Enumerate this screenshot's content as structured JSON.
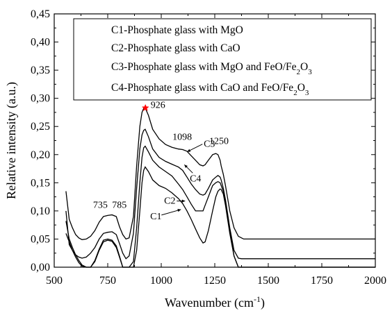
{
  "chart_data": {
    "type": "line",
    "title": "",
    "xlabel": "Wavenumber (cm",
    "xlabel_sup": "-1",
    "xlabel_end": ")",
    "ylabel": "Relative intensity (a.u.)",
    "xlim": [
      500,
      2000
    ],
    "ylim": [
      0,
      0.45
    ],
    "x_ticks": [
      500,
      750,
      1000,
      1250,
      1500,
      1750,
      2000
    ],
    "x_tick_labels": [
      "500",
      "750",
      "1000",
      "1250",
      "1500",
      "1750",
      "2000"
    ],
    "y_ticks": [
      0,
      0.05,
      0.1,
      0.15,
      0.2,
      0.25,
      0.3,
      0.35,
      0.4,
      0.45
    ],
    "y_tick_labels": [
      "0,00",
      "0,05",
      "0,10",
      "0,15",
      "0,20",
      "0,25",
      "0,30",
      "0,35",
      "0,40",
      "0,45"
    ],
    "grid": false,
    "legend_position": "top-right",
    "legend": [
      {
        "label": "C1-Phosphate glass with MgO"
      },
      {
        "label": "C2-Phosphate glass with CaO"
      },
      {
        "label": "C3-Phosphate glass with MgO and FeO/Fe",
        "sub": "2",
        "end": "O",
        "sub2": "3"
      },
      {
        "label": "C4-Phosphate glass with CaO and FeO/Fe",
        "sub": "2",
        "end": "O",
        "sub2": "3"
      }
    ],
    "series": [
      {
        "name": "C1",
        "x": [
          555,
          570,
          585,
          600,
          615,
          630,
          650,
          670,
          690,
          710,
          730,
          750,
          770,
          790,
          805,
          820,
          835,
          850,
          870,
          885,
          900,
          910,
          918,
          925,
          940,
          960,
          990,
          1020,
          1050,
          1080,
          1100,
          1120,
          1140,
          1160,
          1180,
          1195,
          1205,
          1220,
          1240,
          1255,
          1265,
          1275,
          1280,
          1290,
          1300,
          1320,
          1340,
          1360,
          1375,
          1385,
          1400,
          1500,
          1600,
          1700,
          1800,
          1900,
          2000
        ],
        "y": [
          0.06,
          0.045,
          0.03,
          0.018,
          0.008,
          0.002,
          0,
          0,
          0.01,
          0.03,
          0.045,
          0.048,
          0.046,
          0.035,
          0.018,
          0,
          0,
          0,
          0,
          0.03,
          0.1,
          0.15,
          0.172,
          0.178,
          0.17,
          0.155,
          0.145,
          0.14,
          0.132,
          0.122,
          0.113,
          0.1,
          0.085,
          0.068,
          0.052,
          0.043,
          0.045,
          0.065,
          0.1,
          0.125,
          0.135,
          0.139,
          0.138,
          0.13,
          0.11,
          0.06,
          0.02,
          0,
          0,
          0,
          0,
          0,
          0,
          0,
          0,
          0,
          0
        ]
      },
      {
        "name": "C2",
        "x": [
          555,
          570,
          585,
          600,
          615,
          630,
          650,
          670,
          690,
          710,
          730,
          750,
          770,
          790,
          805,
          820,
          835,
          850,
          870,
          885,
          900,
          910,
          918,
          925,
          940,
          960,
          990,
          1020,
          1050,
          1080,
          1100,
          1120,
          1140,
          1160,
          1180,
          1195,
          1205,
          1220,
          1240,
          1255,
          1265,
          1275,
          1280,
          1290,
          1300,
          1320,
          1340,
          1360,
          1375,
          1385,
          1400,
          1500,
          1600,
          1700,
          1800,
          1900,
          2000
        ],
        "y": [
          0.082,
          0.05,
          0.035,
          0.022,
          0.012,
          0.004,
          0,
          0,
          0.012,
          0.032,
          0.048,
          0.05,
          0.048,
          0.038,
          0.02,
          0,
          0,
          0,
          0.01,
          0.07,
          0.15,
          0.195,
          0.212,
          0.215,
          0.205,
          0.19,
          0.178,
          0.17,
          0.162,
          0.148,
          0.138,
          0.125,
          0.112,
          0.1,
          0.1,
          0.1,
          0.11,
          0.125,
          0.145,
          0.15,
          0.152,
          0.15,
          0.145,
          0.135,
          0.115,
          0.065,
          0.02,
          0,
          0,
          0,
          0,
          0,
          0,
          0,
          0,
          0,
          0
        ]
      },
      {
        "name": "C3",
        "x": [
          555,
          570,
          585,
          600,
          615,
          630,
          650,
          670,
          690,
          710,
          730,
          750,
          770,
          790,
          805,
          820,
          835,
          850,
          870,
          885,
          900,
          910,
          918,
          925,
          940,
          960,
          990,
          1020,
          1050,
          1080,
          1100,
          1120,
          1140,
          1160,
          1180,
          1195,
          1205,
          1220,
          1240,
          1255,
          1265,
          1275,
          1280,
          1290,
          1300,
          1320,
          1340,
          1360,
          1375,
          1385,
          1400,
          1500,
          1600,
          1700,
          1800,
          1900,
          2000
        ],
        "y": [
          0.135,
          0.085,
          0.07,
          0.058,
          0.052,
          0.049,
          0.05,
          0.055,
          0.065,
          0.08,
          0.09,
          0.092,
          0.093,
          0.09,
          0.072,
          0.058,
          0.05,
          0.052,
          0.09,
          0.18,
          0.25,
          0.275,
          0.282,
          0.283,
          0.27,
          0.245,
          0.228,
          0.218,
          0.213,
          0.21,
          0.209,
          0.206,
          0.198,
          0.19,
          0.182,
          0.18,
          0.182,
          0.19,
          0.2,
          0.202,
          0.2,
          0.19,
          0.18,
          0.165,
          0.145,
          0.1,
          0.07,
          0.055,
          0.052,
          0.05,
          0.05,
          0.05,
          0.05,
          0.05,
          0.05,
          0.05,
          0.05
        ]
      },
      {
        "name": "C4",
        "x": [
          555,
          570,
          585,
          600,
          615,
          630,
          650,
          670,
          690,
          710,
          730,
          750,
          770,
          790,
          805,
          820,
          835,
          850,
          870,
          885,
          900,
          910,
          918,
          925,
          940,
          960,
          990,
          1020,
          1050,
          1080,
          1100,
          1120,
          1140,
          1160,
          1180,
          1195,
          1205,
          1220,
          1240,
          1255,
          1265,
          1275,
          1280,
          1290,
          1300,
          1320,
          1340,
          1360,
          1375,
          1385,
          1400,
          1500,
          1600,
          1700,
          1800,
          1900,
          2000
        ],
        "y": [
          0.1,
          0.04,
          0.03,
          0.022,
          0.018,
          0.016,
          0.018,
          0.025,
          0.035,
          0.05,
          0.06,
          0.062,
          0.063,
          0.058,
          0.042,
          0.025,
          0.015,
          0.02,
          0.06,
          0.14,
          0.21,
          0.235,
          0.243,
          0.245,
          0.232,
          0.21,
          0.195,
          0.188,
          0.183,
          0.178,
          0.172,
          0.16,
          0.148,
          0.138,
          0.13,
          0.128,
          0.13,
          0.14,
          0.155,
          0.16,
          0.163,
          0.16,
          0.155,
          0.14,
          0.12,
          0.07,
          0.03,
          0.016,
          0.015,
          0.015,
          0.015,
          0.015,
          0.015,
          0.015,
          0.015,
          0.015,
          0.015
        ]
      }
    ],
    "annotations": [
      {
        "text": "926",
        "x": 926,
        "y": 0.283,
        "marker": "star",
        "marker_color": "#ff0000"
      },
      {
        "text": "735",
        "x": 735,
        "y": 0.098
      },
      {
        "text": "785",
        "x": 785,
        "y": 0.098
      },
      {
        "text": "1098",
        "x": 1098,
        "y": 0.215
      },
      {
        "text": "1250",
        "x": 1250,
        "y": 0.208
      },
      {
        "text": "C3",
        "x": 1160,
        "y": 0.21
      },
      {
        "text": "C4",
        "x": 1160,
        "y": 0.15
      },
      {
        "text": "C2",
        "x": 1040,
        "y": 0.12
      },
      {
        "text": "C1",
        "x": 975,
        "y": 0.1
      }
    ]
  }
}
